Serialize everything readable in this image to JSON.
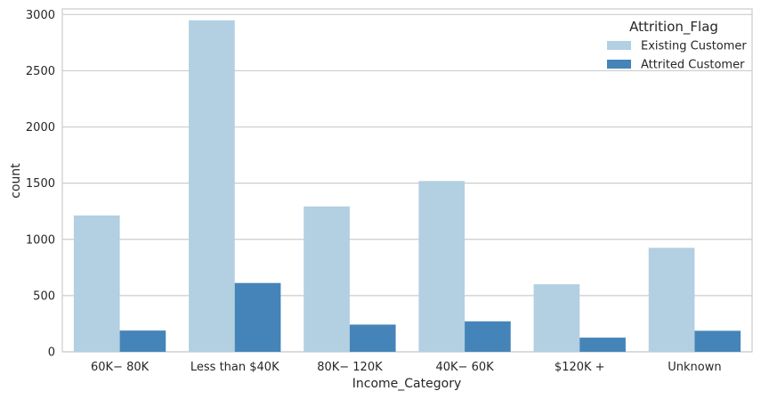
{
  "chart_data": {
    "type": "bar",
    "categories": [
      "$60K - $80K",
      "Less than $40K",
      "$80K - $120K",
      "$40K - $60K",
      "$120K +",
      "Unknown"
    ],
    "category_labels": [
      "60K− 80K",
      "Less than $40K",
      "80K− 120K",
      "40K− 60K",
      "$120K +",
      "Unknown"
    ],
    "series": [
      {
        "name": "Existing Customer",
        "color": "#b3cfe2",
        "values": [
          1213,
          2949,
          1293,
          1519,
          601,
          925
        ]
      },
      {
        "name": "Attrited Customer",
        "color": "#4584b8",
        "values": [
          189,
          612,
          242,
          271,
          126,
          187
        ]
      }
    ],
    "xlabel": "Income_Category",
    "ylabel": "count",
    "ylim": [
      0,
      3050
    ],
    "yticks": [
      0,
      500,
      1000,
      1500,
      2000,
      2500,
      3000
    ],
    "grid": true,
    "legend": {
      "title": "Attrition_Flag",
      "position": "top-right"
    }
  }
}
